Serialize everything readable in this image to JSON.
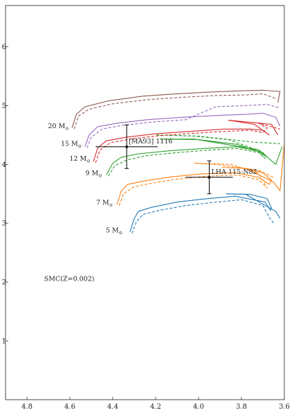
{
  "chart_data": {
    "type": "line",
    "title": "",
    "xlabel": "",
    "ylabel": "",
    "x_reversed": true,
    "xlim": [
      4.9,
      3.6
    ],
    "ylim": [
      0,
      6.7
    ],
    "xticks": [
      4.8,
      4.6,
      4.4,
      4.2,
      4.0,
      3.8,
      3.6
    ],
    "xtick_labels": [
      "4.8",
      "4.6",
      "4.4",
      "4.2",
      "4.0",
      "3.8",
      "3.6"
    ],
    "yticks": [
      1,
      2,
      3,
      4,
      5,
      6
    ],
    "ytick_labels": [
      "1",
      "2",
      "3",
      "4",
      "5",
      "6"
    ],
    "grid": false,
    "legend": "none",
    "annotation": "SMC(Z=0.002)",
    "tracks": [
      {
        "label_text": "5 M",
        "label_sub": "⊙",
        "color": "#1f77b4",
        "label_at": [
          4.335,
          2.88
        ],
        "solid": [
          [
            4.32,
            2.85
          ],
          [
            4.3,
            3.08
          ],
          [
            4.28,
            3.2
          ],
          [
            4.22,
            3.27
          ],
          [
            4.1,
            3.36
          ],
          [
            3.98,
            3.41
          ],
          [
            3.83,
            3.46
          ],
          [
            3.69,
            3.36
          ],
          [
            3.665,
            3.22
          ],
          [
            3.66,
            3.26
          ],
          [
            3.68,
            3.42
          ],
          [
            3.76,
            3.49
          ],
          [
            3.87,
            3.5
          ],
          [
            3.78,
            3.49
          ],
          [
            3.64,
            3.2
          ],
          [
            3.62,
            3.08
          ]
        ],
        "dashed": [
          [
            4.31,
            2.83
          ],
          [
            4.29,
            3.02
          ],
          [
            4.26,
            3.15
          ],
          [
            4.18,
            3.22
          ],
          [
            4.06,
            3.3
          ],
          [
            3.94,
            3.35
          ],
          [
            3.8,
            3.4
          ],
          [
            3.7,
            3.3
          ],
          [
            3.67,
            3.1
          ],
          [
            3.65,
            3.0
          ]
        ]
      },
      {
        "label_text": "7 M",
        "label_sub": "⊙",
        "color": "#ff7f0e",
        "label_at": [
          4.38,
          3.35
        ],
        "solid": [
          [
            4.38,
            3.32
          ],
          [
            4.36,
            3.55
          ],
          [
            4.33,
            3.66
          ],
          [
            4.25,
            3.72
          ],
          [
            4.12,
            3.79
          ],
          [
            3.98,
            3.84
          ],
          [
            3.83,
            3.86
          ],
          [
            3.72,
            3.78
          ],
          [
            3.67,
            3.66
          ],
          [
            3.66,
            3.73
          ],
          [
            3.7,
            3.86
          ],
          [
            3.78,
            3.93
          ],
          [
            3.89,
            3.95
          ],
          [
            3.78,
            3.93
          ],
          [
            3.65,
            3.7
          ],
          [
            3.62,
            3.55
          ],
          [
            3.6,
            4.35
          ]
        ],
        "dashed": [
          [
            4.37,
            3.3
          ],
          [
            4.35,
            3.5
          ],
          [
            4.3,
            3.62
          ],
          [
            4.22,
            3.68
          ],
          [
            4.1,
            3.75
          ],
          [
            3.96,
            3.8
          ],
          [
            3.82,
            3.82
          ],
          [
            3.72,
            3.74
          ],
          [
            3.68,
            3.6
          ],
          [
            3.72,
            3.85
          ],
          [
            3.85,
            4.0
          ],
          [
            4.02,
            4.02
          ],
          [
            3.92,
            4.0
          ],
          [
            3.72,
            3.9
          ],
          [
            3.65,
            3.78
          ]
        ]
      },
      {
        "label_text": "9 M",
        "label_sub": "⊙",
        "color": "#2ca02c",
        "label_at": [
          4.43,
          3.85
        ],
        "solid": [
          [
            4.43,
            3.82
          ],
          [
            4.4,
            4.02
          ],
          [
            4.36,
            4.12
          ],
          [
            4.28,
            4.18
          ],
          [
            4.14,
            4.23
          ],
          [
            3.98,
            4.27
          ],
          [
            3.82,
            4.3
          ],
          [
            3.72,
            4.22
          ],
          [
            3.68,
            4.12
          ],
          [
            3.7,
            4.2
          ],
          [
            3.82,
            4.34
          ],
          [
            4.0,
            4.42
          ],
          [
            4.18,
            4.43
          ],
          [
            4.02,
            4.43
          ],
          [
            3.72,
            4.25
          ],
          [
            3.64,
            4.0
          ],
          [
            3.61,
            4.3
          ]
        ],
        "dashed": [
          [
            4.42,
            3.8
          ],
          [
            4.39,
            3.98
          ],
          [
            4.33,
            4.08
          ],
          [
            4.24,
            4.15
          ],
          [
            4.1,
            4.2
          ],
          [
            3.96,
            4.24
          ],
          [
            3.82,
            4.27
          ],
          [
            3.72,
            4.2
          ],
          [
            3.69,
            4.1
          ],
          [
            3.73,
            4.25
          ],
          [
            3.86,
            4.42
          ],
          [
            4.02,
            4.48
          ],
          [
            4.2,
            4.5
          ],
          [
            4.0,
            4.48
          ],
          [
            3.75,
            4.38
          ],
          [
            3.62,
            4.35
          ]
        ]
      },
      {
        "label_text": "12 M",
        "label_sub": "⊙",
        "color": "#d62728",
        "label_at": [
          4.485,
          4.1
        ],
        "solid": [
          [
            4.49,
            4.05
          ],
          [
            4.47,
            4.28
          ],
          [
            4.43,
            4.4
          ],
          [
            4.34,
            4.46
          ],
          [
            4.2,
            4.52
          ],
          [
            4.04,
            4.56
          ],
          [
            3.88,
            4.6
          ],
          [
            3.76,
            4.6
          ],
          [
            3.7,
            4.58
          ],
          [
            3.67,
            4.5
          ],
          [
            3.74,
            4.68
          ],
          [
            3.86,
            4.75
          ],
          [
            3.66,
            4.68
          ],
          [
            3.63,
            4.5
          ]
        ],
        "dashed": [
          [
            4.48,
            4.03
          ],
          [
            4.46,
            4.24
          ],
          [
            4.41,
            4.37
          ],
          [
            4.32,
            4.43
          ],
          [
            4.18,
            4.49
          ],
          [
            4.02,
            4.53
          ],
          [
            3.88,
            4.56
          ],
          [
            3.76,
            4.58
          ],
          [
            3.7,
            4.54
          ],
          [
            3.68,
            4.62
          ],
          [
            3.72,
            4.7
          ],
          [
            3.62,
            4.6
          ]
        ]
      },
      {
        "label_text": "15 M",
        "label_sub": "⊙",
        "color": "#9467bd",
        "label_at": [
          4.525,
          4.35
        ],
        "solid": [
          [
            4.53,
            4.3
          ],
          [
            4.51,
            4.5
          ],
          [
            4.47,
            4.64
          ],
          [
            4.38,
            4.7
          ],
          [
            4.24,
            4.76
          ],
          [
            4.08,
            4.8
          ],
          [
            3.92,
            4.83
          ],
          [
            3.78,
            4.85
          ],
          [
            3.7,
            4.87
          ],
          [
            3.64,
            4.8
          ],
          [
            3.62,
            4.65
          ]
        ],
        "dashed": [
          [
            4.52,
            4.28
          ],
          [
            4.5,
            4.46
          ],
          [
            4.45,
            4.6
          ],
          [
            4.36,
            4.66
          ],
          [
            4.22,
            4.72
          ],
          [
            4.06,
            4.76
          ],
          [
            3.92,
            4.98
          ],
          [
            3.78,
            5.0
          ],
          [
            3.68,
            5.02
          ],
          [
            3.62,
            4.96
          ]
        ]
      },
      {
        "label_text": "20 M",
        "label_sub": "⊙",
        "color": "#8c564b",
        "label_at": [
          4.585,
          4.65
        ],
        "solid": [
          [
            4.59,
            4.62
          ],
          [
            4.57,
            4.85
          ],
          [
            4.53,
            4.98
          ],
          [
            4.42,
            5.08
          ],
          [
            4.26,
            5.16
          ],
          [
            4.1,
            5.2
          ],
          [
            3.94,
            5.23
          ],
          [
            3.8,
            5.25
          ],
          [
            3.7,
            5.26
          ],
          [
            3.62,
            5.24
          ],
          [
            3.63,
            5.05
          ]
        ],
        "dashed": [
          [
            4.58,
            4.6
          ],
          [
            4.56,
            4.82
          ],
          [
            4.51,
            4.94
          ],
          [
            4.4,
            5.03
          ],
          [
            4.24,
            5.1
          ],
          [
            4.08,
            5.14
          ],
          [
            3.92,
            5.17
          ],
          [
            3.78,
            5.18
          ],
          [
            3.7,
            5.2
          ],
          [
            3.64,
            5.12
          ]
        ]
      }
    ],
    "points": [
      {
        "name": "[MA93]  1116",
        "x": 4.335,
        "y": 4.3,
        "xerr": 0.145,
        "yerr": 0.37
      },
      {
        "name": "LHA 115-N82",
        "x": 3.95,
        "y": 3.78,
        "xerr": 0.11,
        "yerr": 0.28
      }
    ]
  }
}
